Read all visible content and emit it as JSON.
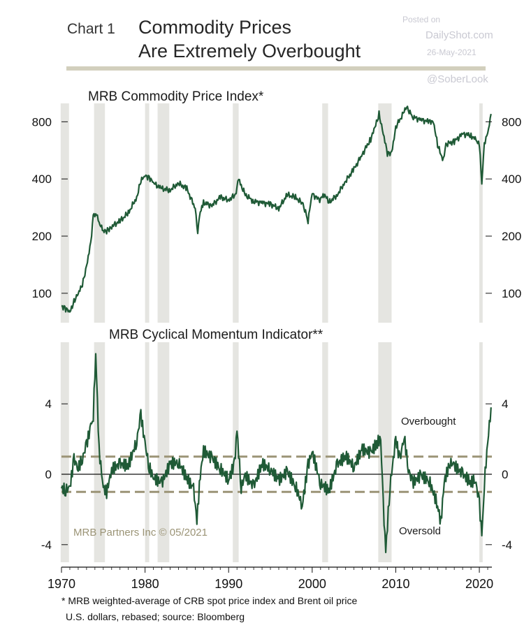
{
  "header": {
    "chart_label": "Chart 1",
    "title_line1": "Commodity Prices",
    "title_line2": "Are Extremely Overbought"
  },
  "watermark": {
    "line1": "Posted on",
    "line2": "DailyShot.com",
    "line3": "26-May-2021",
    "line4": "@SoberLook"
  },
  "footnote": {
    "line1": "*  MRB weighted-average of CRB spot price index and Brent oil price",
    "line2": "U.S. dollars, rebased; source: Bloomberg"
  },
  "credit": "MRB Partners Inc © 05/2021",
  "colors": {
    "series": "#1f5a36",
    "band": "#e5e5e1",
    "threshold": "#9b9476",
    "rule": "#d2cfbd"
  },
  "chart_data": [
    {
      "type": "line",
      "title": "MRB Commodity Price Index*",
      "yscale": "log",
      "ylim": [
        70,
        1000
      ],
      "yticks": [
        100,
        200,
        400,
        800
      ],
      "xlim": [
        1970,
        2021.5
      ],
      "recession_bands": [
        [
          1969.9,
          1970.9
        ],
        [
          1973.9,
          1975.2
        ],
        [
          1980.0,
          1980.5
        ],
        [
          1981.5,
          1982.9
        ],
        [
          1990.5,
          1991.2
        ],
        [
          2001.2,
          2001.9
        ],
        [
          2007.9,
          2009.5
        ],
        [
          2020.0,
          2020.4
        ]
      ],
      "series": [
        {
          "x": [
            1970,
            1970.5,
            1971,
            1971.5,
            1972,
            1972.5,
            1973,
            1973.5,
            1973.8,
            1974.2,
            1974.6,
            1975,
            1975.5,
            1976,
            1977,
            1978,
            1979,
            1979.5,
            1980,
            1980.5,
            1981,
            1982,
            1983,
            1984,
            1985,
            1986,
            1986.3,
            1986.6,
            1987,
            1988,
            1989,
            1990,
            1990.8,
            1991.2,
            1992,
            1993,
            1994,
            1995,
            1996,
            1997,
            1998,
            1998.9,
            1999.5,
            2000,
            2000.8,
            2001.5,
            2002,
            2003,
            2004,
            2005,
            2006,
            2007,
            2007.5,
            2008,
            2008.5,
            2009.0,
            2009.5,
            2010,
            2011,
            2011.3,
            2012,
            2013,
            2014,
            2014.5,
            2015,
            2015.7,
            2016,
            2017,
            2018,
            2019,
            2019.6,
            2020.0,
            2020.3,
            2020.6,
            2021.0,
            2021.4
          ],
          "y": [
            86,
            83,
            79,
            91,
            100,
            110,
            140,
            185,
            255,
            260,
            235,
            210,
            215,
            225,
            240,
            265,
            320,
            390,
            415,
            410,
            380,
            355,
            350,
            380,
            355,
            280,
            215,
            265,
            300,
            290,
            320,
            310,
            330,
            395,
            330,
            305,
            300,
            295,
            280,
            330,
            320,
            295,
            240,
            335,
            310,
            330,
            300,
            330,
            390,
            450,
            540,
            650,
            740,
            880,
            700,
            540,
            550,
            750,
            900,
            960,
            850,
            820,
            800,
            810,
            600,
            500,
            610,
            630,
            690,
            680,
            640,
            600,
            380,
            620,
            680,
            880
          ]
        }
      ]
    },
    {
      "type": "line",
      "title": "MRB Cyclical Momentum Indicator**",
      "ylim": [
        -5,
        7.5
      ],
      "yticks": [
        -4,
        0,
        4
      ],
      "xticks": [
        1970,
        1980,
        1990,
        2000,
        2010,
        2020
      ],
      "xlim": [
        1970,
        2021.5
      ],
      "reference_lines": [
        {
          "label": "Overbought",
          "value": 1.0,
          "style": "dashed"
        },
        {
          "label": "Oversold",
          "value": -1.0,
          "style": "dashed"
        },
        {
          "label": "",
          "value": 0,
          "style": "solid"
        }
      ],
      "series": [
        {
          "x": [
            1970,
            1970.5,
            1971,
            1971.5,
            1972,
            1972.5,
            1973,
            1973.5,
            1973.8,
            1974.1,
            1974.5,
            1975,
            1975.4,
            1976,
            1977,
            1978,
            1979,
            1979.5,
            1980,
            1980.5,
            1981,
            1982,
            1983,
            1984,
            1985,
            1985.8,
            1986.2,
            1986.6,
            1987,
            1988,
            1989,
            1990,
            1990.7,
            1991.0,
            1991.5,
            1992,
            1993,
            1994,
            1995,
            1996,
            1997,
            1998,
            1998.8,
            1999.5,
            2000,
            2001,
            2002,
            2003,
            2004,
            2005,
            2006,
            2007,
            2007.8,
            2008.2,
            2008.5,
            2008.8,
            2009.3,
            2010,
            2010.5,
            2011,
            2011.5,
            2012,
            2013,
            2014,
            2015,
            2015.4,
            2015.8,
            2016.5,
            2017,
            2018,
            2019,
            2019.5,
            2020.0,
            2020.3,
            2020.6,
            2021.0,
            2021.4
          ],
          "y": [
            -0.8,
            -0.9,
            -0.8,
            0.8,
            0.3,
            0.8,
            1.6,
            2.6,
            3.2,
            6.8,
            1.2,
            -0.9,
            -1.2,
            0.1,
            0.4,
            0.3,
            1.7,
            3.2,
            1.5,
            0.2,
            -0.4,
            -0.7,
            0.4,
            0.5,
            -0.4,
            -1.0,
            -2.8,
            -0.2,
            1.2,
            0.8,
            0.2,
            -0.4,
            0.5,
            2.4,
            -0.8,
            -0.1,
            -0.7,
            0.6,
            0.3,
            -0.3,
            0.2,
            -0.6,
            -1.7,
            0.6,
            1.4,
            -0.4,
            -0.8,
            0.7,
            1.2,
            0.6,
            1.6,
            1.4,
            2.0,
            2.2,
            -1.5,
            -4.2,
            -0.5,
            2.2,
            1.0,
            2.4,
            0.5,
            -0.3,
            0.1,
            -0.2,
            -1.6,
            -2.6,
            -0.3,
            0.8,
            0.6,
            0.1,
            -0.4,
            -0.2,
            -1.6,
            -3.6,
            -0.5,
            1.8,
            3.8
          ]
        }
      ],
      "annotations": [
        "Overbought",
        "Oversold"
      ]
    }
  ]
}
